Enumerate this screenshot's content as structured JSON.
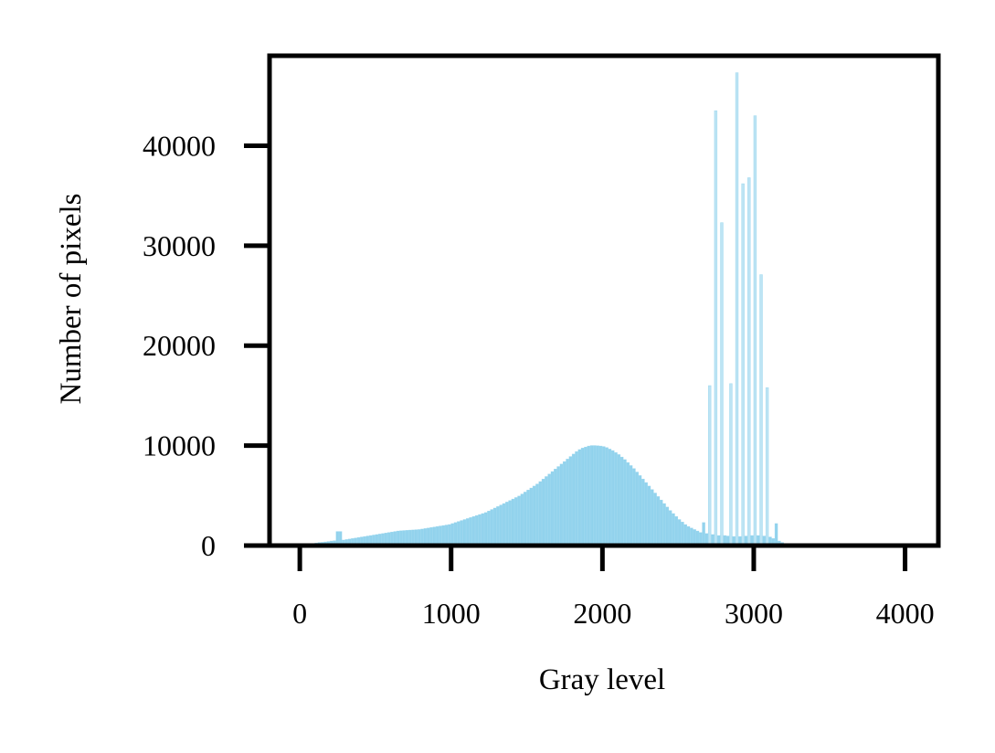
{
  "chart_data": {
    "type": "bar",
    "xlabel": "Gray level",
    "ylabel": "Number of pixels",
    "xlim": [
      -200,
      4220
    ],
    "ylim": [
      0,
      49000
    ],
    "xticks": [
      0,
      1000,
      2000,
      3000,
      4000
    ],
    "yticks": [
      0,
      10000,
      20000,
      30000,
      40000
    ],
    "xtick_labels": [
      "0",
      "1000",
      "2000",
      "3000",
      "4000"
    ],
    "ytick_labels": [
      "0",
      "10000",
      "20000",
      "30000",
      "40000"
    ],
    "grid": false,
    "bar_color": "#87ceeb",
    "bin_width": 20,
    "bins": [
      [
        20,
        100
      ],
      [
        40,
        120
      ],
      [
        60,
        150
      ],
      [
        80,
        200
      ],
      [
        100,
        250
      ],
      [
        120,
        300
      ],
      [
        140,
        320
      ],
      [
        160,
        360
      ],
      [
        180,
        400
      ],
      [
        200,
        450
      ],
      [
        220,
        480
      ],
      [
        240,
        1400
      ],
      [
        260,
        1400
      ],
      [
        280,
        550
      ],
      [
        300,
        600
      ],
      [
        320,
        650
      ],
      [
        340,
        700
      ],
      [
        360,
        750
      ],
      [
        380,
        800
      ],
      [
        400,
        850
      ],
      [
        420,
        900
      ],
      [
        440,
        950
      ],
      [
        460,
        1000
      ],
      [
        480,
        1050
      ],
      [
        500,
        1100
      ],
      [
        520,
        1150
      ],
      [
        540,
        1200
      ],
      [
        560,
        1250
      ],
      [
        580,
        1300
      ],
      [
        600,
        1350
      ],
      [
        620,
        1400
      ],
      [
        640,
        1450
      ],
      [
        660,
        1480
      ],
      [
        680,
        1500
      ],
      [
        700,
        1520
      ],
      [
        720,
        1540
      ],
      [
        740,
        1560
      ],
      [
        760,
        1580
      ],
      [
        780,
        1600
      ],
      [
        800,
        1650
      ],
      [
        820,
        1700
      ],
      [
        840,
        1750
      ],
      [
        860,
        1800
      ],
      [
        880,
        1850
      ],
      [
        900,
        1900
      ],
      [
        920,
        1950
      ],
      [
        940,
        2000
      ],
      [
        960,
        2050
      ],
      [
        980,
        2100
      ],
      [
        1000,
        2200
      ],
      [
        1020,
        2300
      ],
      [
        1040,
        2400
      ],
      [
        1060,
        2500
      ],
      [
        1080,
        2600
      ],
      [
        1100,
        2700
      ],
      [
        1120,
        2800
      ],
      [
        1140,
        2900
      ],
      [
        1160,
        3000
      ],
      [
        1180,
        3100
      ],
      [
        1200,
        3200
      ],
      [
        1220,
        3300
      ],
      [
        1240,
        3450
      ],
      [
        1260,
        3600
      ],
      [
        1280,
        3750
      ],
      [
        1300,
        3900
      ],
      [
        1320,
        4050
      ],
      [
        1340,
        4200
      ],
      [
        1360,
        4350
      ],
      [
        1380,
        4500
      ],
      [
        1400,
        4650
      ],
      [
        1420,
        4800
      ],
      [
        1440,
        4950
      ],
      [
        1460,
        5150
      ],
      [
        1480,
        5350
      ],
      [
        1500,
        5550
      ],
      [
        1520,
        5750
      ],
      [
        1540,
        5950
      ],
      [
        1560,
        6150
      ],
      [
        1580,
        6400
      ],
      [
        1600,
        6650
      ],
      [
        1620,
        6900
      ],
      [
        1640,
        7150
      ],
      [
        1660,
        7400
      ],
      [
        1680,
        7650
      ],
      [
        1700,
        7900
      ],
      [
        1720,
        8150
      ],
      [
        1740,
        8400
      ],
      [
        1760,
        8650
      ],
      [
        1780,
        8900
      ],
      [
        1800,
        9150
      ],
      [
        1820,
        9400
      ],
      [
        1840,
        9600
      ],
      [
        1860,
        9750
      ],
      [
        1880,
        9850
      ],
      [
        1900,
        9950
      ],
      [
        1920,
        10000
      ],
      [
        1940,
        10000
      ],
      [
        1960,
        9980
      ],
      [
        1980,
        9950
      ],
      [
        2000,
        9900
      ],
      [
        2020,
        9800
      ],
      [
        2040,
        9650
      ],
      [
        2060,
        9500
      ],
      [
        2080,
        9300
      ],
      [
        2100,
        9100
      ],
      [
        2120,
        8850
      ],
      [
        2140,
        8600
      ],
      [
        2160,
        8300
      ],
      [
        2180,
        8000
      ],
      [
        2200,
        7700
      ],
      [
        2220,
        7350
      ],
      [
        2240,
        7000
      ],
      [
        2260,
        6650
      ],
      [
        2280,
        6300
      ],
      [
        2300,
        5950
      ],
      [
        2320,
        5600
      ],
      [
        2340,
        5250
      ],
      [
        2360,
        4900
      ],
      [
        2380,
        4550
      ],
      [
        2400,
        4200
      ],
      [
        2420,
        3850
      ],
      [
        2440,
        3500
      ],
      [
        2460,
        3200
      ],
      [
        2480,
        2900
      ],
      [
        2500,
        2600
      ],
      [
        2520,
        2350
      ],
      [
        2540,
        2100
      ],
      [
        2560,
        1900
      ],
      [
        2580,
        1750
      ],
      [
        2600,
        1600
      ],
      [
        2620,
        1450
      ],
      [
        2640,
        1300
      ],
      [
        2660,
        2300
      ],
      [
        2680,
        1200
      ],
      [
        2700,
        16000
      ],
      [
        2720,
        1100
      ],
      [
        2740,
        43500
      ],
      [
        2760,
        1000
      ],
      [
        2780,
        32300
      ],
      [
        2800,
        1000
      ],
      [
        2820,
        950
      ],
      [
        2840,
        16200
      ],
      [
        2860,
        900
      ],
      [
        2880,
        47300
      ],
      [
        2900,
        900
      ],
      [
        2920,
        36200
      ],
      [
        2940,
        950
      ],
      [
        2960,
        36800
      ],
      [
        2980,
        1000
      ],
      [
        3000,
        43000
      ],
      [
        3020,
        1000
      ],
      [
        3040,
        27100
      ],
      [
        3060,
        950
      ],
      [
        3080,
        15800
      ],
      [
        3100,
        850
      ],
      [
        3120,
        700
      ],
      [
        3140,
        2200
      ],
      [
        3160,
        450
      ],
      [
        3180,
        300
      ],
      [
        3200,
        200
      ],
      [
        3220,
        150
      ],
      [
        3240,
        100
      ],
      [
        3260,
        80
      ],
      [
        3280,
        60
      ],
      [
        3300,
        40
      ],
      [
        3320,
        30
      ],
      [
        3340,
        20
      ],
      [
        3360,
        15
      ],
      [
        3380,
        10
      ],
      [
        3400,
        8
      ]
    ]
  }
}
